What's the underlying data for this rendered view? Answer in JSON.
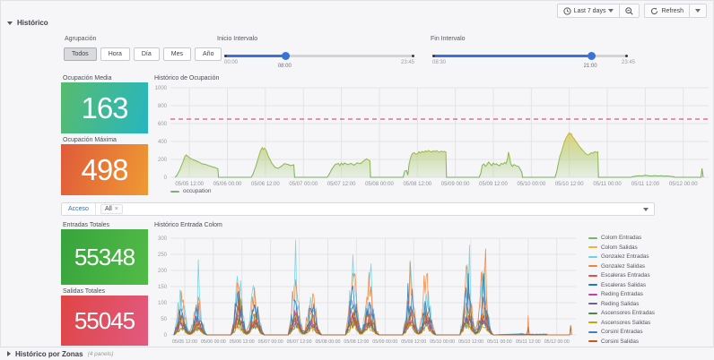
{
  "toolbar": {
    "time_label": "Last 7 days",
    "refresh_label": "Refresh"
  },
  "rows": {
    "top_title": "Histórico",
    "bottom_title": "Histórico por Zonas",
    "bottom_hint": "(4 panels)"
  },
  "agrupacion": {
    "label": "Agrupación",
    "options": [
      "Todos",
      "Hora",
      "Día",
      "Mes",
      "Año"
    ],
    "selected_index": 0
  },
  "sliders": {
    "inicio": {
      "label": "Inicio Intervalo",
      "min_label": "00:00",
      "max_label": "23:45",
      "value_label": "08:00",
      "percent": 32
    },
    "fin": {
      "label": "Fin Intervalo",
      "min_label": "08:30",
      "max_label": "23:45",
      "value_label": "21:00",
      "percent": 81
    }
  },
  "stats": [
    {
      "title": "Ocupación Media",
      "value": "163",
      "gradient": [
        "#58bb6e",
        "#27b6c0"
      ]
    },
    {
      "title": "Ocupación Máxima",
      "value": "498",
      "gradient": [
        "#e05a3a",
        "#ef9a33"
      ]
    },
    {
      "title": "Entradas Totales",
      "value": "55348",
      "gradient": [
        "#37a33c",
        "#52bb47"
      ]
    },
    {
      "title": "Salidas Totales",
      "value": "55045",
      "gradient": [
        "#df4545",
        "#e25a80"
      ]
    }
  ],
  "acceso": {
    "label": "Acceso",
    "selected_tag": "All",
    "remove_icon": "×"
  },
  "chart_data": [
    {
      "type": "area",
      "title": "Histórico de Ocupación",
      "legend_label": "occupation",
      "legend_color": "#7eb26d",
      "ylim": [
        0,
        1000
      ],
      "yticks": [
        0,
        200,
        400,
        600,
        800,
        1000
      ],
      "threshold": 650,
      "threshold_color": "#e0566b",
      "xlim_hours": [
        6,
        176
      ],
      "xticks": [
        {
          "t": 12,
          "label": "05/05 12:00"
        },
        {
          "t": 24,
          "label": "05/06 00:00"
        },
        {
          "t": 36,
          "label": "05/06 12:00"
        },
        {
          "t": 48,
          "label": "05/07 00:00"
        },
        {
          "t": 60,
          "label": "05/07 12:00"
        },
        {
          "t": 72,
          "label": "05/08 00:00"
        },
        {
          "t": 84,
          "label": "05/08 12:00"
        },
        {
          "t": 96,
          "label": "05/09 00:00"
        },
        {
          "t": 108,
          "label": "05/09 12:00"
        },
        {
          "t": 120,
          "label": "05/10 00:00"
        },
        {
          "t": 132,
          "label": "05/10 12:00"
        },
        {
          "t": 144,
          "label": "05/11 00:00"
        },
        {
          "t": 156,
          "label": "05/11 12:00"
        },
        {
          "t": 168,
          "label": "05/12 00:00"
        }
      ],
      "points": [
        [
          7.5,
          0
        ],
        [
          8,
          20
        ],
        [
          9,
          85
        ],
        [
          10,
          175
        ],
        [
          10.5,
          230
        ],
        [
          11,
          250
        ],
        [
          11.5,
          235
        ],
        [
          12,
          220
        ],
        [
          13,
          200
        ],
        [
          14,
          185
        ],
        [
          15,
          170
        ],
        [
          16,
          150
        ],
        [
          17,
          145
        ],
        [
          18,
          132
        ],
        [
          19,
          120
        ],
        [
          20,
          110
        ],
        [
          21,
          95
        ],
        [
          21.2,
          0
        ],
        [
          31.5,
          0
        ],
        [
          32,
          30
        ],
        [
          33,
          125
        ],
        [
          34,
          245
        ],
        [
          34.5,
          300
        ],
        [
          35,
          332
        ],
        [
          35.3,
          310
        ],
        [
          35.7,
          325
        ],
        [
          36,
          315
        ],
        [
          36.5,
          280
        ],
        [
          37,
          230
        ],
        [
          38,
          160
        ],
        [
          39,
          112
        ],
        [
          40,
          100
        ],
        [
          41,
          122
        ],
        [
          42,
          152
        ],
        [
          43,
          145
        ],
        [
          44,
          132
        ],
        [
          45,
          140
        ],
        [
          45.2,
          0
        ],
        [
          55.5,
          0
        ],
        [
          56,
          25
        ],
        [
          57,
          92
        ],
        [
          58,
          142
        ],
        [
          59,
          155
        ],
        [
          59.5,
          132
        ],
        [
          60,
          158
        ],
        [
          60.5,
          140
        ],
        [
          61,
          160
        ],
        [
          62,
          142
        ],
        [
          63,
          156
        ],
        [
          64,
          136
        ],
        [
          65,
          162
        ],
        [
          66,
          152
        ],
        [
          67,
          182
        ],
        [
          68,
          208
        ],
        [
          68.5,
          195
        ],
        [
          69,
          185
        ],
        [
          69.2,
          0
        ],
        [
          79.5,
          0
        ],
        [
          80,
          70
        ],
        [
          80.6,
          75
        ],
        [
          81,
          25
        ],
        [
          81.4,
          150
        ],
        [
          82,
          235
        ],
        [
          82.5,
          268
        ],
        [
          83,
          275
        ],
        [
          83.5,
          258
        ],
        [
          84,
          262
        ],
        [
          84.5,
          286
        ],
        [
          85,
          272
        ],
        [
          85.5,
          290
        ],
        [
          86,
          278
        ],
        [
          86.5,
          296
        ],
        [
          87,
          284
        ],
        [
          87.5,
          300
        ],
        [
          88,
          290
        ],
        [
          88.5,
          282
        ],
        [
          89,
          296
        ],
        [
          89.5,
          286
        ],
        [
          90,
          298
        ],
        [
          90.5,
          288
        ],
        [
          91,
          280
        ],
        [
          91.5,
          292
        ],
        [
          92,
          286
        ],
        [
          92.5,
          290
        ],
        [
          93,
          282
        ],
        [
          93.2,
          0
        ],
        [
          103.5,
          0
        ],
        [
          104,
          42
        ],
        [
          104.5,
          132
        ],
        [
          105,
          150
        ],
        [
          105.5,
          122
        ],
        [
          106,
          142
        ],
        [
          106.5,
          170
        ],
        [
          107,
          150
        ],
        [
          107.5,
          132
        ],
        [
          108,
          160
        ],
        [
          108.5,
          142
        ],
        [
          109,
          152
        ],
        [
          109.5,
          136
        ],
        [
          110,
          130
        ],
        [
          110.5,
          156
        ],
        [
          111,
          146
        ],
        [
          111.5,
          166
        ],
        [
          112,
          152
        ],
        [
          112.5,
          212
        ],
        [
          112.8,
          282
        ],
        [
          113.1,
          235
        ],
        [
          113.5,
          152
        ],
        [
          114,
          122
        ],
        [
          114.5,
          142
        ],
        [
          115,
          132
        ],
        [
          116,
          120
        ],
        [
          116.5,
          90
        ],
        [
          117,
          55
        ],
        [
          117.2,
          0
        ],
        [
          127.5,
          0
        ],
        [
          128,
          62
        ],
        [
          128.5,
          152
        ],
        [
          129,
          232
        ],
        [
          129.5,
          282
        ],
        [
          130,
          342
        ],
        [
          130.5,
          402
        ],
        [
          131,
          442
        ],
        [
          131.5,
          472
        ],
        [
          132,
          498
        ],
        [
          132.3,
          478
        ],
        [
          132.6,
          488
        ],
        [
          133,
          455
        ],
        [
          133.5,
          432
        ],
        [
          134,
          402
        ],
        [
          134.5,
          382
        ],
        [
          135,
          352
        ],
        [
          135.5,
          330
        ],
        [
          136,
          310
        ],
        [
          136.5,
          292
        ],
        [
          137,
          268
        ],
        [
          137.5,
          255
        ],
        [
          138,
          250
        ],
        [
          138.5,
          262
        ],
        [
          139,
          275
        ],
        [
          139.5,
          268
        ],
        [
          140,
          288
        ],
        [
          140.5,
          278
        ],
        [
          141,
          285
        ],
        [
          141.2,
          0
        ],
        [
          151.5,
          0
        ],
        [
          152,
          8
        ],
        [
          153,
          13
        ],
        [
          154,
          18
        ],
        [
          155,
          15
        ],
        [
          156,
          22
        ],
        [
          157,
          18
        ],
        [
          158,
          14
        ],
        [
          159,
          19
        ],
        [
          160,
          14
        ],
        [
          161,
          17
        ],
        [
          162,
          12
        ],
        [
          163,
          15
        ],
        [
          164,
          10
        ],
        [
          165,
          8
        ],
        [
          165.2,
          0
        ],
        [
          173.6,
          0
        ],
        [
          173.9,
          100
        ],
        [
          174.3,
          0
        ]
      ]
    },
    {
      "type": "line",
      "title": "Histórico Entrada Colom",
      "ylim": [
        0,
        300
      ],
      "yticks": [
        0,
        50,
        100,
        150,
        200,
        250,
        300
      ],
      "xlim_hours": [
        6,
        176
      ],
      "xticks": [
        {
          "t": 12,
          "label": "05/05 12:00"
        },
        {
          "t": 24,
          "label": "05/06 00:00"
        },
        {
          "t": 36,
          "label": "05/06 12:00"
        },
        {
          "t": 48,
          "label": "05/07 00:00"
        },
        {
          "t": 60,
          "label": "05/07 12:00"
        },
        {
          "t": 72,
          "label": "05/08 00:00"
        },
        {
          "t": 84,
          "label": "05/08 12:00"
        },
        {
          "t": 96,
          "label": "05/09 00:00"
        },
        {
          "t": 108,
          "label": "05/09 12:00"
        },
        {
          "t": 120,
          "label": "05/10 00:00"
        },
        {
          "t": 132,
          "label": "05/10 12:00"
        },
        {
          "t": 144,
          "label": "05/11 00:00"
        },
        {
          "t": 156,
          "label": "05/11 12:00"
        },
        {
          "t": 168,
          "label": "05/12 00:00"
        }
      ],
      "series": [
        {
          "name": "Colom Entradas",
          "color": "#7EB26D",
          "day_peaks": [
            60,
            85,
            70,
            95,
            80,
            90,
            3,
            0
          ]
        },
        {
          "name": "Colom Salidas",
          "color": "#EAB839",
          "day_peaks": [
            50,
            70,
            60,
            80,
            70,
            78,
            3,
            0
          ]
        },
        {
          "name": "Gonzalez Entradas",
          "color": "#6ED0E0",
          "day_peaks": [
            165,
            190,
            195,
            215,
            205,
            215,
            4,
            0
          ]
        },
        {
          "name": "Gonzalez Salidas",
          "color": "#EF843C",
          "day_peaks": [
            120,
            160,
            150,
            205,
            195,
            210,
            60,
            25
          ]
        },
        {
          "name": "Escaleras Entradas",
          "color": "#E24D42",
          "day_peaks": [
            40,
            58,
            50,
            62,
            55,
            60,
            2,
            0
          ]
        },
        {
          "name": "Escaleras Salidas",
          "color": "#1F78C1",
          "day_peaks": [
            90,
            125,
            110,
            135,
            120,
            140,
            4,
            0
          ]
        },
        {
          "name": "Reding Entradas",
          "color": "#BA43A9",
          "day_peaks": [
            45,
            62,
            55,
            66,
            60,
            70,
            2,
            0
          ]
        },
        {
          "name": "Reding Salidas",
          "color": "#705DA0",
          "day_peaks": [
            35,
            50,
            45,
            55,
            50,
            56,
            2,
            0
          ]
        },
        {
          "name": "Ascensores Entradas",
          "color": "#508642",
          "day_peaks": [
            28,
            40,
            34,
            44,
            40,
            46,
            2,
            0
          ]
        },
        {
          "name": "Ascensores Salidas",
          "color": "#CCA300",
          "day_peaks": [
            22,
            34,
            30,
            38,
            34,
            40,
            2,
            0
          ]
        },
        {
          "name": "Corsini Entradas",
          "color": "#447EBC",
          "day_peaks": [
            70,
            100,
            90,
            112,
            100,
            118,
            3,
            0
          ]
        },
        {
          "name": "Corsini Salidas",
          "color": "#C15C17",
          "day_peaks": [
            55,
            78,
            70,
            88,
            80,
            92,
            25,
            30
          ]
        }
      ]
    }
  ]
}
